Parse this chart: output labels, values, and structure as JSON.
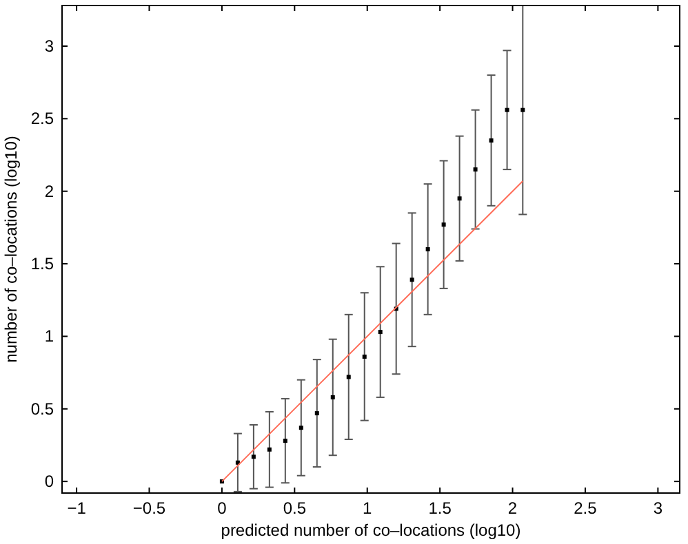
{
  "chart_data": {
    "type": "scatter",
    "xlabel": "predicted number of co–locations (log10)",
    "ylabel": "number of co–locations (log10)",
    "xlim": [
      -1.1,
      3.15
    ],
    "ylim": [
      -0.08,
      3.28
    ],
    "xticks": [
      -1,
      -0.5,
      0,
      0.5,
      1,
      1.5,
      2,
      2.5,
      3
    ],
    "yticks": [
      0,
      0.5,
      1,
      1.5,
      2,
      2.5,
      3
    ],
    "grid": false,
    "series": [
      {
        "color": "#000000",
        "marker": "square",
        "x": [
          0,
          0.109,
          0.218,
          0.327,
          0.436,
          0.545,
          0.654,
          0.763,
          0.872,
          0.981,
          1.09,
          1.199,
          1.308,
          1.417,
          1.526,
          1.635,
          1.744,
          1.853,
          1.962,
          2.07
        ],
        "values": [
          0,
          0.13,
          0.17,
          0.22,
          0.28,
          0.37,
          0.47,
          0.58,
          0.72,
          0.86,
          1.03,
          1.19,
          1.39,
          1.6,
          1.77,
          1.95,
          2.15,
          2.35,
          2.56,
          2.56
        ],
        "errors": [
          null,
          0.2,
          0.22,
          0.26,
          0.29,
          0.33,
          0.37,
          0.4,
          0.43,
          0.44,
          0.45,
          0.45,
          0.46,
          0.45,
          0.44,
          0.43,
          0.41,
          0.45,
          0.41,
          0.72
        ]
      },
      {
        "type": "line",
        "color": "#ff6e5a",
        "x": [
          0,
          2.07
        ],
        "values": [
          0,
          2.07
        ]
      }
    ]
  }
}
